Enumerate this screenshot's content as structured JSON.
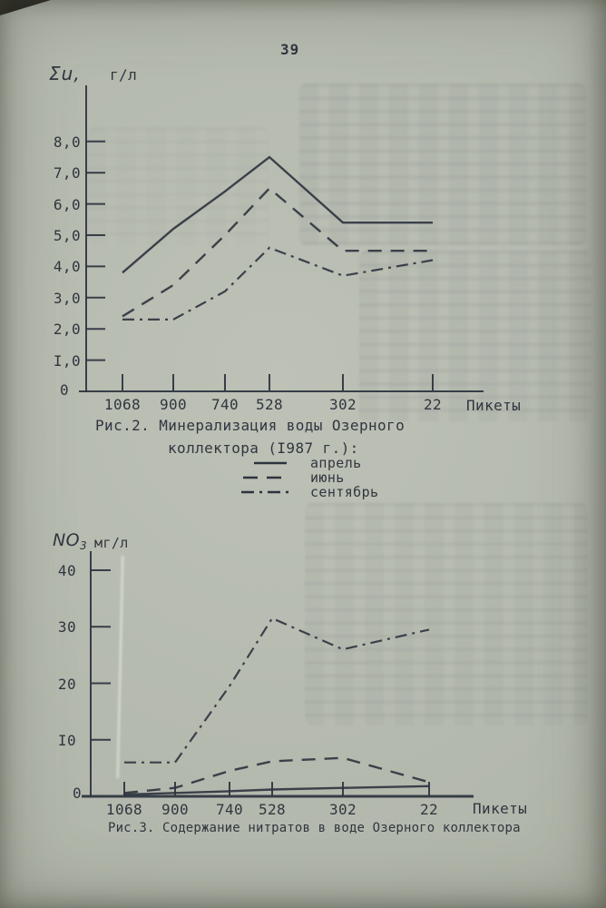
{
  "page": {
    "number": "39"
  },
  "colors": {
    "paper": "#b4b8ae",
    "ink": "#2d333e",
    "text": "#30363f"
  },
  "figure2": {
    "y_axis_label": "Σu,",
    "y_axis_unit": "г/л",
    "y_tick_labels": [
      "8,0",
      "7,0",
      "6,0",
      "5,0",
      "4,0",
      "3,0",
      "2,0",
      "I,0"
    ],
    "zero_label": "0",
    "x_tick_labels": [
      "1068",
      "900",
      "740",
      "528",
      "302",
      "22"
    ],
    "x_axis_title": "Пикеты",
    "caption_line1": "Рис.2. Минерализация воды Озерного",
    "caption_line2": "коллектора (I987 г.):",
    "legend": [
      "апрель",
      "июнь",
      "сентябрь"
    ]
  },
  "figure3": {
    "y_axis_label": "NO",
    "y_axis_label_sub": "3",
    "y_axis_unit": "мг/л",
    "y_tick_labels": [
      "40",
      "30",
      "20",
      "I0"
    ],
    "zero_label": "0",
    "x_tick_labels": [
      "1068",
      "900",
      "740",
      "528",
      "302",
      "22"
    ],
    "x_axis_title": "Пикеты",
    "caption": "Рис.3. Содержание нитратов в воде Озерного коллектора"
  },
  "chart_data": [
    {
      "type": "line",
      "title": "Рис.2. Минерализация воды Озерного коллектора (1987 г.)",
      "xlabel": "Пикеты",
      "ylabel": "Σu, г/л",
      "categories": [
        1068,
        900,
        740,
        528,
        302,
        22
      ],
      "series": [
        {
          "name": "апрель",
          "style": "solid",
          "values": [
            3.8,
            5.2,
            6.4,
            7.5,
            5.4,
            5.4
          ]
        },
        {
          "name": "июнь",
          "style": "dashed",
          "values": [
            2.4,
            3.4,
            5.0,
            6.5,
            4.5,
            4.5
          ]
        },
        {
          "name": "сентябрь",
          "style": "dashdot",
          "values": [
            2.3,
            2.3,
            3.2,
            4.6,
            3.7,
            4.2
          ]
        }
      ],
      "ylim": [
        0,
        8.7
      ],
      "grid": false,
      "legend_position": "below"
    },
    {
      "type": "line",
      "title": "Рис.3. Содержание нитратов в воде Озерного коллектора",
      "xlabel": "Пикеты",
      "ylabel": "NO3 мг/л",
      "categories": [
        1068,
        900,
        740,
        528,
        302,
        22
      ],
      "series": [
        {
          "name": "апрель",
          "style": "solid",
          "values": [
            0.3,
            0.6,
            0.9,
            1.2,
            1.5,
            1.8
          ]
        },
        {
          "name": "июнь",
          "style": "dashed",
          "values": [
            0.6,
            1.5,
            4.5,
            6.2,
            6.8,
            2.5
          ]
        },
        {
          "name": "сентябрь",
          "style": "dashdot",
          "values": [
            6.0,
            6.0,
            19.5,
            31.5,
            26.0,
            29.5
          ]
        }
      ],
      "ylim": [
        0,
        43
      ],
      "grid": false
    }
  ]
}
